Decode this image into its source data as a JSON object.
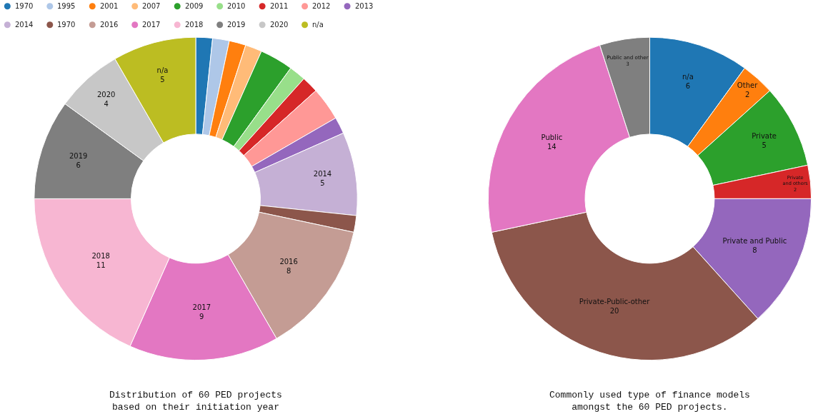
{
  "chart_data": [
    {
      "type": "donut",
      "title": "Distribution of 60 PED projects\nbased on their initiation year",
      "legend": "top",
      "categories": [
        "1970",
        "1995",
        "2001",
        "2007",
        "2009",
        "2010",
        "2011",
        "2012",
        "2013",
        "2014",
        "1970",
        "2016",
        "2017",
        "2018",
        "2019",
        "2020",
        "n/a"
      ],
      "values": [
        1,
        1,
        1,
        1,
        2,
        1,
        1,
        2,
        1,
        5,
        1,
        8,
        9,
        11,
        6,
        4,
        5
      ],
      "value_labels": [
        null,
        null,
        null,
        null,
        null,
        null,
        null,
        null,
        null,
        "5",
        null,
        "8",
        "9",
        "11",
        "6",
        "4",
        "5"
      ],
      "colors": [
        "#1f77b4",
        "#aec7e8",
        "#ff7f0e",
        "#ffbb78",
        "#2ca02c",
        "#98df8a",
        "#d62728",
        "#ff9896",
        "#9467bd",
        "#c5b0d5",
        "#8c564b",
        "#c49c94",
        "#e377c2",
        "#f7b6d2",
        "#7f7f7f",
        "#c7c7c7",
        "#bcbd22"
      ]
    },
    {
      "type": "donut",
      "title": "Commonly used type of finance models\namongst the 60 PED projects.",
      "data_labels": true,
      "categories": [
        "n/a",
        "Other",
        "Private",
        "Private\nand others",
        "Private and Public",
        "Private-Public-other",
        "Public",
        "Public and other"
      ],
      "values": [
        6,
        2,
        5,
        2,
        8,
        20,
        14,
        3
      ],
      "colors": [
        "#1f77b4",
        "#ff7f0e",
        "#2ca02c",
        "#d62728",
        "#9467bd",
        "#8c564b",
        "#e377c2",
        "#7f7f7f"
      ]
    }
  ]
}
